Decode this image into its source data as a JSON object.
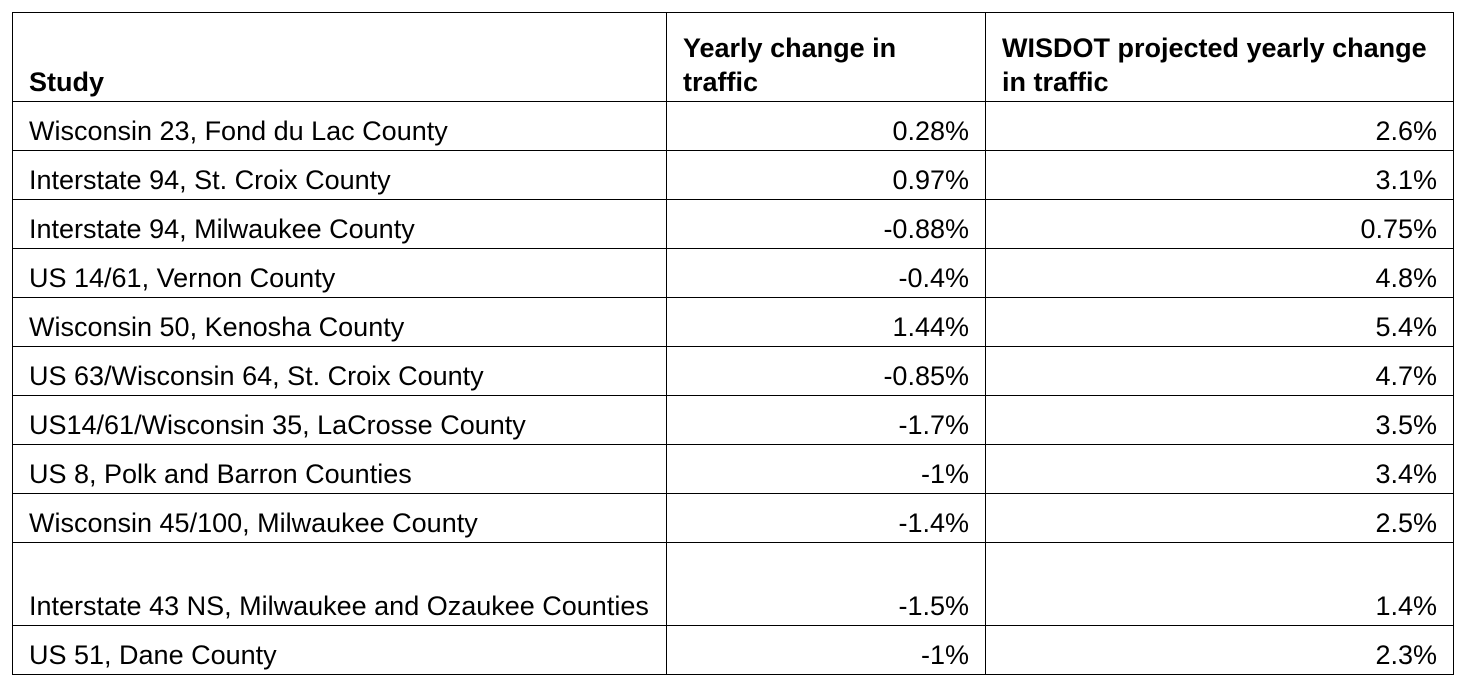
{
  "table": {
    "headers": [
      "Study",
      "Yearly change in traffic",
      "WISDOT projected yearly change in traffic"
    ],
    "rows": [
      {
        "study": "Wisconsin 23, Fond du Lac County",
        "yearly": "0.28%",
        "projected": "2.6%"
      },
      {
        "study": "Interstate 94, St. Croix County",
        "yearly": "0.97%",
        "projected": "3.1%"
      },
      {
        "study": "Interstate 94, Milwaukee County",
        "yearly": "-0.88%",
        "projected": "0.75%"
      },
      {
        "study": "US 14/61, Vernon County",
        "yearly": "-0.4%",
        "projected": "4.8%"
      },
      {
        "study": "Wisconsin 50, Kenosha County",
        "yearly": "1.44%",
        "projected": "5.4%"
      },
      {
        "study": "US 63/Wisconsin 64, St. Croix County",
        "yearly": "-0.85%",
        "projected": "4.7%"
      },
      {
        "study": "US14/61/Wisconsin 35, LaCrosse County",
        "yearly": "-1.7%",
        "projected": "3.5%"
      },
      {
        "study": "US 8, Polk and Barron Counties",
        "yearly": "-1%",
        "projected": "3.4%"
      },
      {
        "study": "Wisconsin 45/100, Milwaukee County",
        "yearly": "-1.4%",
        "projected": "2.5%"
      },
      {
        "study": "Interstate 43 NS, Milwaukee and Ozaukee Counties",
        "yearly": "-1.5%",
        "projected": "1.4%"
      },
      {
        "study": "US 51, Dane County",
        "yearly": "-1%",
        "projected": "2.3%"
      }
    ]
  }
}
